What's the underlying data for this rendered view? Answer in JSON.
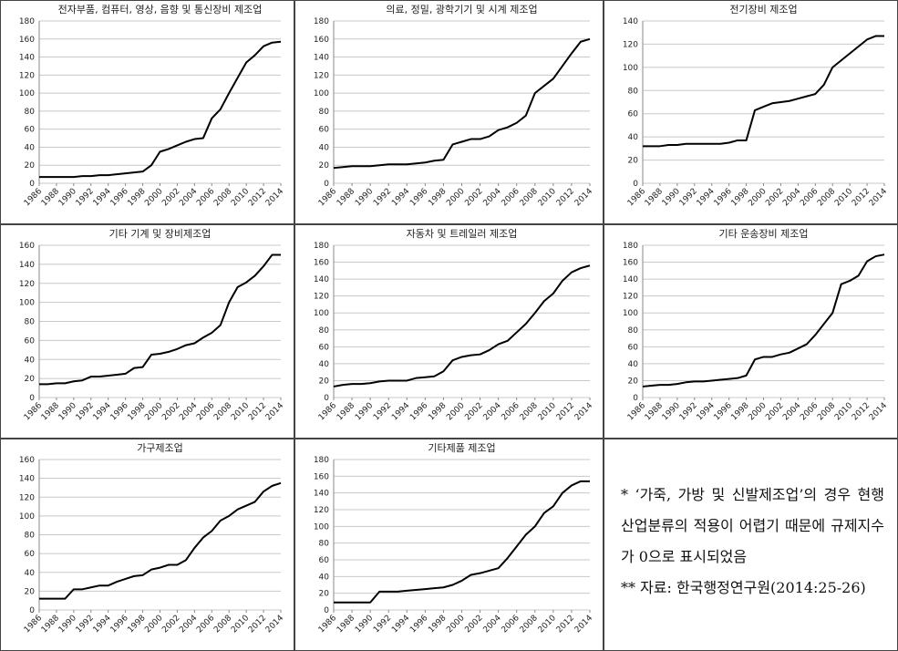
{
  "chart_data": [
    {
      "type": "line",
      "title": "전자부품, 컴퓨터, 영상, 음향 및 통신장비 제조업",
      "color": "#000000",
      "grid": true,
      "x": [
        1986,
        1987,
        1988,
        1989,
        1990,
        1991,
        1992,
        1993,
        1994,
        1995,
        1996,
        1997,
        1998,
        1999,
        2000,
        2001,
        2002,
        2003,
        2004,
        2005,
        2006,
        2007,
        2008,
        2009,
        2010,
        2011,
        2012,
        2013,
        2014
      ],
      "values": [
        7,
        7,
        7,
        7,
        7,
        8,
        8,
        9,
        9,
        10,
        11,
        12,
        13,
        20,
        35,
        38,
        42,
        46,
        49,
        50,
        72,
        82,
        100,
        117,
        134,
        142,
        152,
        156,
        157
      ],
      "xlim": [
        1986,
        2014
      ],
      "xticks": [
        1986,
        1988,
        1990,
        1992,
        1994,
        1996,
        1998,
        2000,
        2002,
        2004,
        2006,
        2008,
        2010,
        2012,
        2014
      ],
      "ylim": [
        0,
        180
      ],
      "yticks": [
        0,
        20,
        40,
        60,
        80,
        100,
        120,
        140,
        160,
        180
      ]
    },
    {
      "type": "line",
      "title": "의료, 정밀, 광학기기 및 시계 제조업",
      "color": "#000000",
      "grid": true,
      "x": [
        1986,
        1987,
        1988,
        1989,
        1990,
        1991,
        1992,
        1993,
        1994,
        1995,
        1996,
        1997,
        1998,
        1999,
        2000,
        2001,
        2002,
        2003,
        2004,
        2005,
        2006,
        2007,
        2008,
        2009,
        2010,
        2011,
        2012,
        2013,
        2014
      ],
      "values": [
        17,
        18,
        19,
        19,
        19,
        20,
        21,
        21,
        21,
        22,
        23,
        25,
        26,
        43,
        46,
        49,
        49,
        52,
        59,
        62,
        67,
        75,
        100,
        108,
        116,
        130,
        144,
        157,
        160
      ],
      "xlim": [
        1986,
        2014
      ],
      "xticks": [
        1986,
        1988,
        1990,
        1992,
        1994,
        1996,
        1998,
        2000,
        2002,
        2004,
        2006,
        2008,
        2010,
        2012,
        2014
      ],
      "ylim": [
        0,
        180
      ],
      "yticks": [
        0,
        20,
        40,
        60,
        80,
        100,
        120,
        140,
        160,
        180
      ]
    },
    {
      "type": "line",
      "title": "전기장비 제조업",
      "color": "#000000",
      "grid": true,
      "x": [
        1986,
        1987,
        1988,
        1989,
        1990,
        1991,
        1992,
        1993,
        1994,
        1995,
        1996,
        1997,
        1998,
        1999,
        2000,
        2001,
        2002,
        2003,
        2004,
        2005,
        2006,
        2007,
        2008,
        2009,
        2010,
        2011,
        2012,
        2013,
        2014
      ],
      "values": [
        32,
        32,
        32,
        33,
        33,
        34,
        34,
        34,
        34,
        34,
        35,
        37,
        37,
        63,
        66,
        69,
        70,
        71,
        73,
        75,
        77,
        85,
        100,
        106,
        112,
        118,
        124,
        127,
        127
      ],
      "xlim": [
        1986,
        2014
      ],
      "xticks": [
        1986,
        1988,
        1990,
        1992,
        1994,
        1996,
        1998,
        2000,
        2002,
        2004,
        2006,
        2008,
        2010,
        2012,
        2014
      ],
      "ylim": [
        0,
        140
      ],
      "yticks": [
        0,
        20,
        40,
        60,
        80,
        100,
        120,
        140
      ]
    },
    {
      "type": "line",
      "title": "기타 기계 및 장비제조업",
      "color": "#000000",
      "grid": true,
      "x": [
        1986,
        1987,
        1988,
        1989,
        1990,
        1991,
        1992,
        1993,
        1994,
        1995,
        1996,
        1997,
        1998,
        1999,
        2000,
        2001,
        2002,
        2003,
        2004,
        2005,
        2006,
        2007,
        2008,
        2009,
        2010,
        2011,
        2012,
        2013,
        2014
      ],
      "values": [
        14,
        14,
        15,
        15,
        17,
        18,
        22,
        22,
        23,
        24,
        25,
        31,
        32,
        45,
        46,
        48,
        51,
        55,
        57,
        63,
        68,
        76,
        100,
        116,
        121,
        128,
        138,
        150,
        150
      ],
      "xlim": [
        1986,
        2014
      ],
      "xticks": [
        1986,
        1988,
        1990,
        1992,
        1994,
        1996,
        1998,
        2000,
        2002,
        2004,
        2006,
        2008,
        2010,
        2012,
        2014
      ],
      "ylim": [
        0,
        160
      ],
      "yticks": [
        0,
        20,
        40,
        60,
        80,
        100,
        120,
        140,
        160
      ]
    },
    {
      "type": "line",
      "title": "자동차 및 트레일러 제조업",
      "color": "#000000",
      "grid": true,
      "x": [
        1986,
        1987,
        1988,
        1989,
        1990,
        1991,
        1992,
        1993,
        1994,
        1995,
        1996,
        1997,
        1998,
        1999,
        2000,
        2001,
        2002,
        2003,
        2004,
        2005,
        2006,
        2007,
        2008,
        2009,
        2010,
        2011,
        2012,
        2013,
        2014
      ],
      "values": [
        13,
        15,
        16,
        16,
        17,
        19,
        20,
        20,
        20,
        23,
        24,
        25,
        31,
        44,
        48,
        50,
        51,
        56,
        63,
        67,
        77,
        87,
        100,
        114,
        123,
        138,
        148,
        153,
        156
      ],
      "xlim": [
        1986,
        2014
      ],
      "xticks": [
        1986,
        1988,
        1990,
        1992,
        1994,
        1996,
        1998,
        2000,
        2002,
        2004,
        2006,
        2008,
        2010,
        2012,
        2014
      ],
      "ylim": [
        0,
        180
      ],
      "yticks": [
        0,
        20,
        40,
        60,
        80,
        100,
        120,
        140,
        160,
        180
      ]
    },
    {
      "type": "line",
      "title": "기타 운송장비 제조업",
      "color": "#000000",
      "grid": true,
      "x": [
        1986,
        1987,
        1988,
        1989,
        1990,
        1991,
        1992,
        1993,
        1994,
        1995,
        1996,
        1997,
        1998,
        1999,
        2000,
        2001,
        2002,
        2003,
        2004,
        2005,
        2006,
        2007,
        2008,
        2009,
        2010,
        2011,
        2012,
        2013,
        2014
      ],
      "values": [
        13,
        14,
        15,
        15,
        16,
        18,
        19,
        19,
        20,
        21,
        22,
        23,
        26,
        45,
        48,
        48,
        51,
        53,
        58,
        63,
        74,
        87,
        100,
        134,
        138,
        144,
        161,
        167,
        169
      ],
      "xlim": [
        1986,
        2014
      ],
      "xticks": [
        1986,
        1988,
        1990,
        1992,
        1994,
        1996,
        1998,
        2000,
        2002,
        2004,
        2006,
        2008,
        2010,
        2012,
        2014
      ],
      "ylim": [
        0,
        180
      ],
      "yticks": [
        0,
        20,
        40,
        60,
        80,
        100,
        120,
        140,
        160,
        180
      ]
    },
    {
      "type": "line",
      "title": "가구제조업",
      "color": "#000000",
      "grid": true,
      "x": [
        1986,
        1987,
        1988,
        1989,
        1990,
        1991,
        1992,
        1993,
        1994,
        1995,
        1996,
        1997,
        1998,
        1999,
        2000,
        2001,
        2002,
        2003,
        2004,
        2005,
        2006,
        2007,
        2008,
        2009,
        2010,
        2011,
        2012,
        2013,
        2014
      ],
      "values": [
        12,
        12,
        12,
        12,
        22,
        22,
        24,
        26,
        26,
        30,
        33,
        36,
        37,
        43,
        45,
        48,
        48,
        53,
        66,
        77,
        84,
        95,
        100,
        107,
        111,
        115,
        126,
        132,
        135
      ],
      "xlim": [
        1986,
        2014
      ],
      "xticks": [
        1986,
        1988,
        1990,
        1992,
        1994,
        1996,
        1998,
        2000,
        2002,
        2004,
        2006,
        2008,
        2010,
        2012,
        2014
      ],
      "ylim": [
        0,
        160
      ],
      "yticks": [
        0,
        20,
        40,
        60,
        80,
        100,
        120,
        140,
        160
      ]
    },
    {
      "type": "line",
      "title": "기타제품 제조업",
      "color": "#000000",
      "grid": true,
      "x": [
        1986,
        1987,
        1988,
        1989,
        1990,
        1991,
        1992,
        1993,
        1994,
        1995,
        1996,
        1997,
        1998,
        1999,
        2000,
        2001,
        2002,
        2003,
        2004,
        2005,
        2006,
        2007,
        2008,
        2009,
        2010,
        2011,
        2012,
        2013,
        2014
      ],
      "values": [
        9,
        9,
        9,
        9,
        9,
        22,
        22,
        22,
        23,
        24,
        25,
        26,
        27,
        30,
        35,
        42,
        44,
        47,
        50,
        62,
        76,
        90,
        100,
        116,
        124,
        140,
        149,
        154,
        154
      ],
      "xlim": [
        1986,
        2014
      ],
      "xticks": [
        1986,
        1988,
        1990,
        1992,
        1994,
        1996,
        1998,
        2000,
        2002,
        2004,
        2006,
        2008,
        2010,
        2012,
        2014
      ],
      "ylim": [
        0,
        180
      ],
      "yticks": [
        0,
        20,
        40,
        60,
        80,
        100,
        120,
        140,
        160,
        180
      ]
    }
  ],
  "notes": [
    "* ‘가죽, 가방 및 신발제조업’의 경우 현행 산업분류의 적용이 어렵기 때문에 규제지수가 0으로 표시되었음",
    "** 자료: 한국행정연구원(2014:25-26)"
  ]
}
